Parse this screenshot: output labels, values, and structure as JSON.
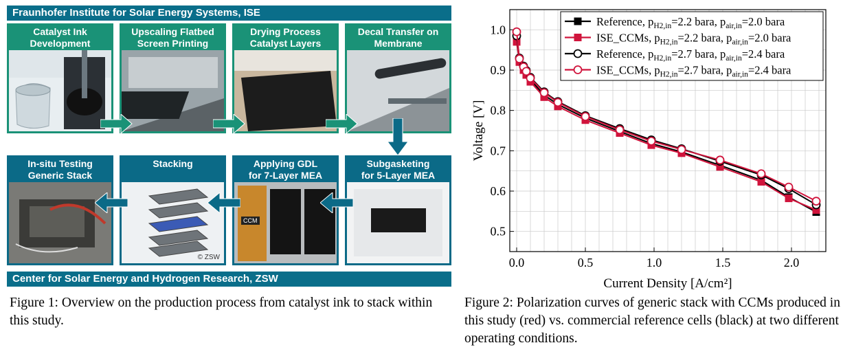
{
  "figure1": {
    "top_banner": "Fraunhofer Institute for Solar Energy Systems, ISE",
    "bottom_banner": "Center for Solar Energy and Hydrogen Research, ZSW",
    "panels": [
      {
        "title": "Catalyst Ink\nDevelopment"
      },
      {
        "title": "Upscaling Flatbed\nScreen Printing"
      },
      {
        "title": "Drying Process\nCatalyst Layers"
      },
      {
        "title": "Decal Transfer on\nMembrane"
      },
      {
        "title": "In-situ Testing\nGeneric Stack"
      },
      {
        "title": "Stacking"
      },
      {
        "title": "Applying GDL\nfor 7-Layer MEA"
      },
      {
        "title": "Subgasketing\nfor 5-Layer MEA"
      }
    ],
    "photo_labels": {
      "ccm": "CCM",
      "zsw_mark": "© ZSW"
    },
    "colors": {
      "ise_green": "#1a9277",
      "zsw_blue": "#0b6a87"
    }
  },
  "figure1_caption": "Figure 1: Overview on the production process from catalyst ink to stack within this study.",
  "figure2_caption": "Figure 2: Polarization curves of generic stack with CCMs produced in this study (red) vs. commercial reference cells (black) at two different operating conditions.",
  "chart_data": {
    "type": "line",
    "xlabel": "Current Density [A/cm²]",
    "ylabel": "Voltage [V]",
    "xlim": [
      -0.05,
      2.25
    ],
    "ylim": [
      0.45,
      1.05
    ],
    "xticks": [
      "0.0",
      "0.5",
      "1.0",
      "1.5",
      "2.0"
    ],
    "yticks": [
      "0.5",
      "0.6",
      "0.7",
      "0.8",
      "0.9",
      "1.0"
    ],
    "grid": true,
    "legend_position": "top-right",
    "series": [
      {
        "name": "Reference, pH2,in=2.2 bara, pair,in=2.0 bara",
        "color": "#000000",
        "marker": "square-filled",
        "x": [
          0.0,
          0.02,
          0.05,
          0.07,
          0.1,
          0.2,
          0.3,
          0.5,
          0.75,
          0.98,
          1.2,
          1.48,
          1.78,
          1.98,
          2.18
        ],
        "y": [
          0.975,
          0.925,
          0.905,
          0.893,
          0.876,
          0.838,
          0.815,
          0.781,
          0.748,
          0.718,
          0.697,
          0.664,
          0.627,
          0.585,
          0.548
        ]
      },
      {
        "name": "ISE_CCMs, pH2,in=2.2 bara, pair,in=2.0 bara",
        "color": "#d0143c",
        "marker": "square-filled",
        "x": [
          0.0,
          0.02,
          0.05,
          0.07,
          0.1,
          0.2,
          0.3,
          0.5,
          0.75,
          0.98,
          1.2,
          1.48,
          1.78,
          1.98,
          2.18
        ],
        "y": [
          0.97,
          0.92,
          0.9,
          0.888,
          0.871,
          0.833,
          0.81,
          0.776,
          0.744,
          0.714,
          0.694,
          0.66,
          0.623,
          0.582,
          0.553
        ]
      },
      {
        "name": "Reference, pH2,in=2.7 bara, pair,in=2.4 bara",
        "color": "#000000",
        "marker": "circle-open",
        "x": [
          0.0,
          0.02,
          0.05,
          0.07,
          0.1,
          0.2,
          0.3,
          0.5,
          0.75,
          0.98,
          1.2,
          1.48,
          1.78,
          1.98,
          2.18
        ],
        "y": [
          0.985,
          0.93,
          0.91,
          0.899,
          0.882,
          0.846,
          0.822,
          0.787,
          0.755,
          0.727,
          0.705,
          0.674,
          0.64,
          0.606,
          0.566
        ]
      },
      {
        "name": "ISE_CCMs, pH2,in=2.7 bara, pair,in=2.4 bara",
        "color": "#d0143c",
        "marker": "circle-open",
        "x": [
          0.0,
          0.02,
          0.05,
          0.07,
          0.1,
          0.2,
          0.3,
          0.5,
          0.75,
          0.98,
          1.2,
          1.48,
          1.78,
          1.98,
          2.18
        ],
        "y": [
          0.995,
          0.928,
          0.908,
          0.897,
          0.88,
          0.844,
          0.82,
          0.785,
          0.752,
          0.724,
          0.703,
          0.677,
          0.643,
          0.61,
          0.575
        ]
      }
    ],
    "legend": [
      {
        "p1": "Reference, p",
        "s1": "H2,in",
        "p2": "=2.2 bara, p",
        "s2": "air,in",
        "p3": "=2.0 bara"
      },
      {
        "p1": "ISE_CCMs, p",
        "s1": "H2,in",
        "p2": "=2.2 bara, p",
        "s2": "air,in",
        "p3": "=2.0 bara"
      },
      {
        "p1": "Reference, p",
        "s1": "H2,in",
        "p2": "=2.7 bara, p",
        "s2": "air,in",
        "p3": "=2.4 bara"
      },
      {
        "p1": "ISE_CCMs, p",
        "s1": "H2,in",
        "p2": "=2.7 bara, p",
        "s2": "air,in",
        "p3": "=2.4 bara"
      }
    ]
  }
}
